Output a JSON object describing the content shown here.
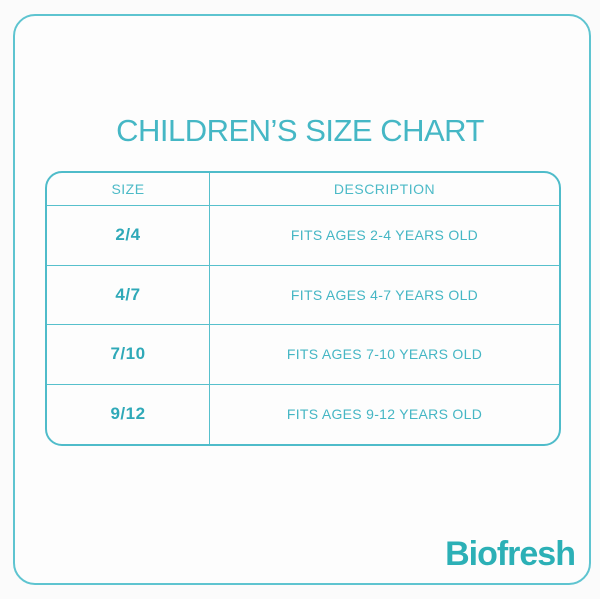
{
  "chart_data": {
    "type": "table",
    "title": "CHILDREN’S SIZE CHART",
    "columns": [
      "SIZE",
      "DESCRIPTION"
    ],
    "rows": [
      [
        "2/4",
        "FITS AGES 2-4 YEARS OLD"
      ],
      [
        "4/7",
        "FITS AGES 4-7 YEARS OLD"
      ],
      [
        "7/10",
        "FITS AGES 7-10 YEARS OLD"
      ],
      [
        "9/12",
        "FITS AGES 9-12 YEARS OLD"
      ]
    ],
    "grid": "on",
    "layout_hint": "rounded-corner bordered table, header row + 4 data rows, all text centered"
  },
  "brand": {
    "logo_text": "Biofresh"
  },
  "colors": {
    "accent_teal": "#45b7c5",
    "size_value_teal": "#2fa9b8",
    "border_teal": "#57c0cc",
    "logo_teal": "#2cb0b6",
    "background": "#fbfbfb"
  }
}
